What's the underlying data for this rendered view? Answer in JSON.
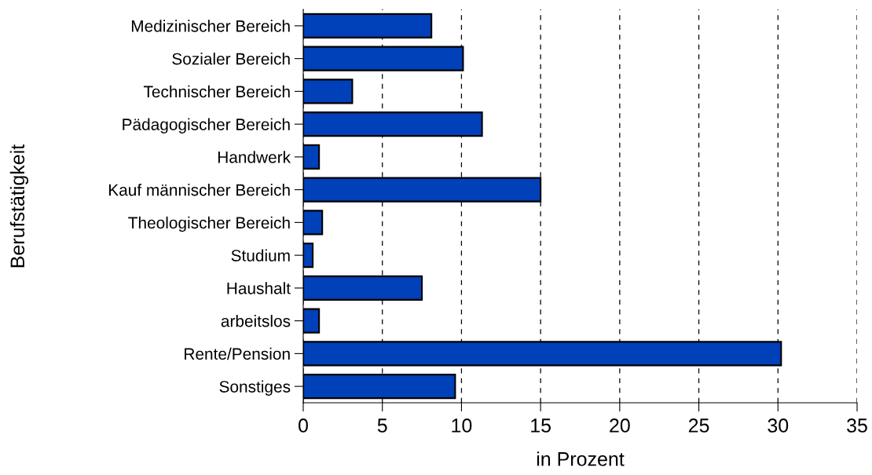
{
  "chart_data": {
    "type": "bar",
    "orientation": "horizontal",
    "xlabel": "in Prozent",
    "ylabel": "Berufstätigkeit",
    "categories": [
      "Medizinischer Bereich",
      "Sozialer Bereich",
      "Technischer Bereich",
      "Pädagogischer Bereich",
      "Handwerk",
      "Kauf männischer Bereich",
      "Theologischer Bereich",
      "Studium",
      "Haushalt",
      "arbeitslos",
      "Rente/Pension",
      "Sonstiges"
    ],
    "values": [
      8.1,
      10.1,
      3.1,
      11.3,
      1.0,
      15.0,
      1.2,
      0.6,
      7.5,
      1.0,
      30.2,
      9.6
    ],
    "color": "#0040b8",
    "xlim": [
      0,
      35
    ],
    "xticks": [
      0,
      5,
      10,
      15,
      20,
      25,
      30,
      35
    ],
    "grid": "x",
    "legend": false
  }
}
